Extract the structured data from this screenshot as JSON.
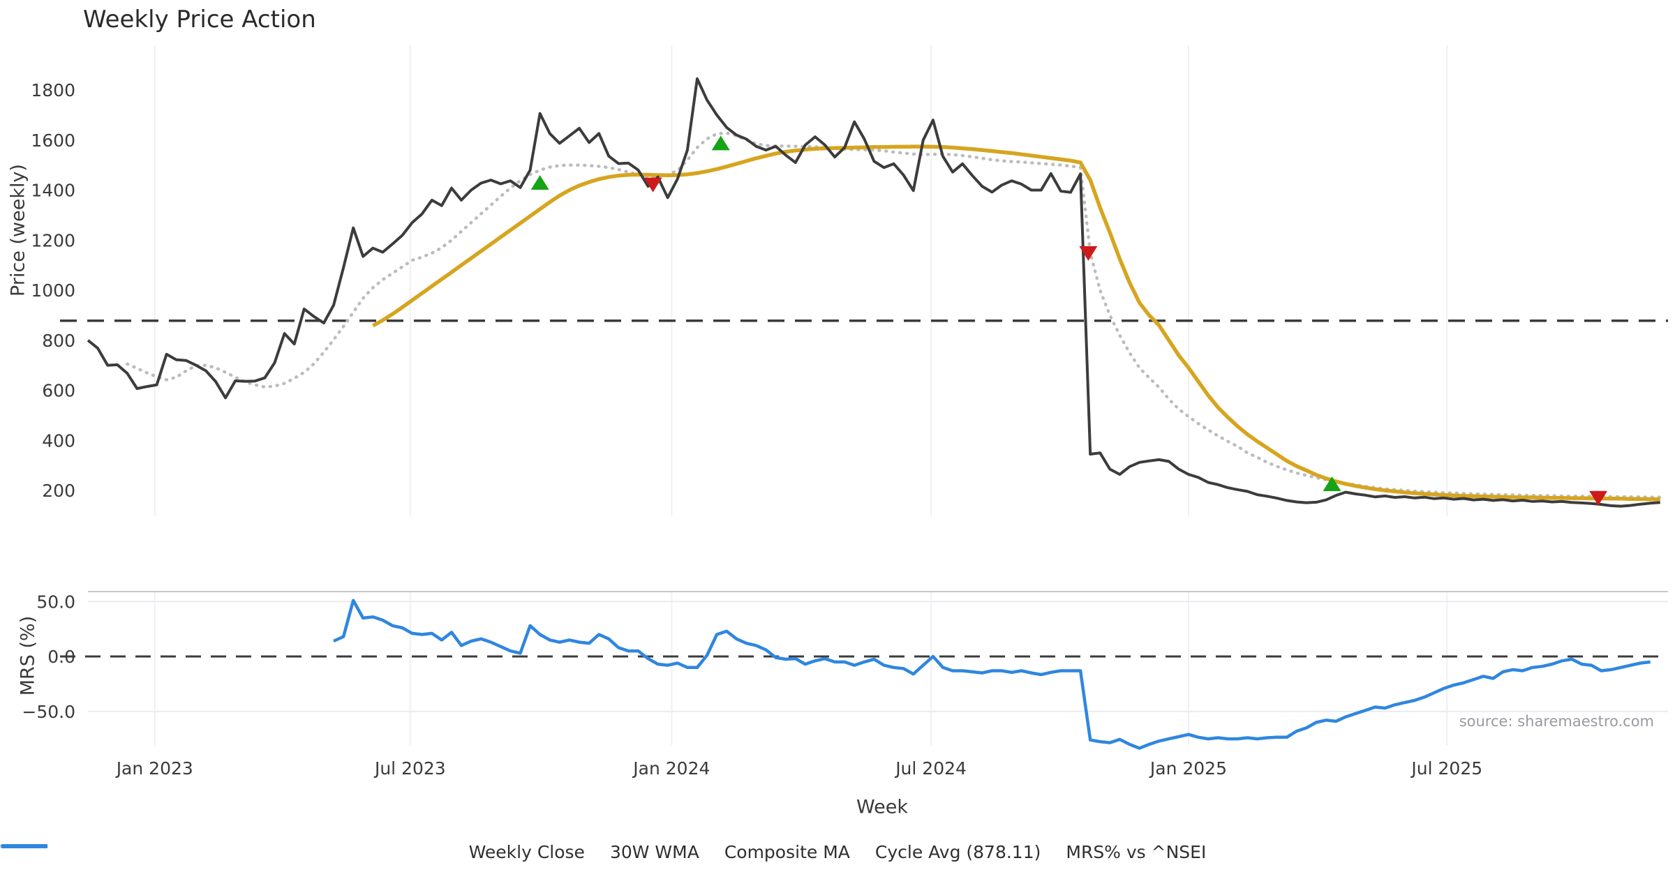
{
  "title": "Weekly Price Action",
  "source": "source: sharemaestro.com",
  "colors": {
    "close": "#3c3c3c",
    "wma": "#d6a520",
    "composite": "#bcbcbc",
    "cycle": "#3b3b3b",
    "mrs": "#2f86e0",
    "buy": "#16a316",
    "sell": "#cd1a1a",
    "grid": "#eef0f5",
    "spine": "#c6c6cc",
    "hgrid": "#e9ebf1",
    "text": "#3a3a3a",
    "source_text": "#9a9aa0"
  },
  "legend": [
    {
      "label": "Weekly Close",
      "style": "solid",
      "color": "#3c3c3c"
    },
    {
      "label": "30W WMA",
      "style": "solid",
      "color": "#d6a520"
    },
    {
      "label": "Composite MA",
      "style": "dotted",
      "color": "#bcbcbc"
    },
    {
      "label": "Cycle Avg (878.11)",
      "style": "dashed",
      "color": "#3b3b3b"
    },
    {
      "label": "MRS% vs ^NSEI",
      "style": "solid",
      "color": "#2f86e0"
    }
  ],
  "chart_data": [
    {
      "type": "line",
      "title": "Weekly Price Action",
      "xlabel": "",
      "ylabel": "Price (weekly)",
      "x_is_weekly": true,
      "week0_date": "2022-11-14",
      "weeks_total": 161,
      "x_ticks": [
        {
          "label": "Jan 2023",
          "week": 6.8
        },
        {
          "label": "Jul 2023",
          "week": 32.8
        },
        {
          "label": "Jan 2024",
          "week": 59.4
        },
        {
          "label": "Jul 2024",
          "week": 85.8
        },
        {
          "label": "Jan 2025",
          "week": 112.0
        },
        {
          "label": "Jul 2025",
          "week": 138.3
        }
      ],
      "y_ticks": [
        200,
        400,
        600,
        800,
        1000,
        1200,
        1400,
        1600,
        1800
      ],
      "ylim": [
        60,
        1900
      ],
      "cycle_avg": 878.11,
      "series": [
        {
          "name": "Weekly Close",
          "start_week": 0,
          "values": [
            800,
            768,
            700,
            702,
            668,
            607,
            615,
            622,
            744,
            722,
            719,
            700,
            678,
            635,
            570,
            638,
            636,
            637,
            650,
            710,
            827,
            785,
            925,
            895,
            869,
            940,
            1090,
            1249,
            1135,
            1168,
            1152,
            1185,
            1220,
            1270,
            1305,
            1360,
            1338,
            1408,
            1360,
            1400,
            1428,
            1440,
            1425,
            1437,
            1410,
            1480,
            1706,
            1626,
            1587,
            1617,
            1647,
            1590,
            1626,
            1536,
            1506,
            1508,
            1480,
            1415,
            1452,
            1370,
            1445,
            1560,
            1845,
            1760,
            1700,
            1650,
            1620,
            1604,
            1575,
            1560,
            1575,
            1540,
            1510,
            1580,
            1613,
            1580,
            1532,
            1570,
            1673,
            1605,
            1515,
            1490,
            1505,
            1460,
            1398,
            1600,
            1680,
            1535,
            1472,
            1505,
            1458,
            1415,
            1392,
            1420,
            1437,
            1424,
            1400,
            1400,
            1466,
            1396,
            1391,
            1465,
            345,
            350,
            285,
            264,
            295,
            312,
            318,
            323,
            316,
            285,
            264,
            252,
            232,
            223,
            211,
            203,
            196,
            183,
            177,
            169,
            160,
            154,
            151,
            153,
            162,
            180,
            193,
            186,
            181,
            174,
            178,
            172,
            175,
            170,
            173,
            167,
            170,
            165,
            168,
            162,
            165,
            160,
            163,
            158,
            161,
            156,
            158,
            154,
            156,
            152,
            150,
            148,
            144,
            139,
            137,
            140,
            145,
            149,
            152
          ]
        },
        {
          "name": "30W WMA",
          "start_week": 29,
          "values": [
            858,
            880,
            905,
            932,
            960,
            988,
            1016,
            1044,
            1072,
            1100,
            1128,
            1156,
            1184,
            1212,
            1240,
            1268,
            1296,
            1324,
            1352,
            1378,
            1400,
            1418,
            1432,
            1444,
            1452,
            1458,
            1461,
            1462,
            1461,
            1460,
            1459,
            1460,
            1463,
            1468,
            1475,
            1484,
            1494,
            1505,
            1516,
            1527,
            1537,
            1546,
            1553,
            1558,
            1562,
            1565,
            1567,
            1568,
            1569,
            1570,
            1571,
            1572,
            1572,
            1573,
            1573,
            1574,
            1574,
            1573,
            1572,
            1570,
            1567,
            1564,
            1560,
            1556,
            1552,
            1548,
            1543,
            1538,
            1533,
            1528,
            1523,
            1518,
            1510,
            1440,
            1330,
            1230,
            1125,
            1030,
            950,
            900,
            860,
            800,
            740,
            690,
            635,
            580,
            532,
            492,
            456,
            424,
            396,
            370,
            344,
            318,
            297,
            280,
            262,
            248,
            236,
            226,
            218,
            211,
            205,
            200,
            196,
            192,
            189,
            186,
            184,
            182,
            180,
            178,
            177,
            176,
            175,
            174,
            173,
            172,
            172,
            171,
            170,
            170,
            169,
            169,
            168,
            168,
            167,
            167,
            166,
            166,
            165,
            165
          ]
        },
        {
          "name": "Composite MA",
          "start_week": 4,
          "values": [
            705,
            688,
            670,
            654,
            642,
            652,
            678,
            698,
            700,
            690,
            672,
            652,
            634,
            622,
            613,
            617,
            628,
            648,
            672,
            706,
            752,
            802,
            855,
            912,
            968,
            1010,
            1042,
            1068,
            1094,
            1120,
            1132,
            1148,
            1170,
            1200,
            1235,
            1270,
            1305,
            1340,
            1375,
            1408,
            1438,
            1462,
            1480,
            1492,
            1498,
            1500,
            1500,
            1498,
            1495,
            1490,
            1482,
            1472,
            1462,
            1455,
            1455,
            1462,
            1478,
            1520,
            1570,
            1605,
            1625,
            1628,
            1618,
            1600,
            1585,
            1578,
            1576,
            1576,
            1575,
            1574,
            1573,
            1570,
            1566,
            1563,
            1562,
            1561,
            1560,
            1557,
            1552,
            1548,
            1544,
            1542,
            1543,
            1544,
            1542,
            1538,
            1533,
            1527,
            1521,
            1517,
            1514,
            1512,
            1509,
            1506,
            1503,
            1500,
            1496,
            1490,
            1150,
            1000,
            900,
            820,
            750,
            690,
            650,
            612,
            565,
            525,
            495,
            467,
            442,
            418,
            396,
            376,
            350,
            332,
            312,
            296,
            282,
            270,
            260,
            251,
            243,
            235,
            228,
            222,
            216,
            211,
            206,
            203,
            200,
            197,
            195,
            193,
            191,
            189,
            188,
            186,
            185,
            184,
            183,
            182,
            181,
            180,
            179,
            179,
            178,
            177,
            177,
            176,
            176,
            175,
            175,
            174,
            174,
            173,
            173
          ]
        }
      ],
      "markers": {
        "buy": [
          [
            46,
            1432
          ],
          [
            64.4,
            1590
          ],
          [
            126.6,
            228
          ]
        ],
        "sell": [
          [
            57.5,
            1422
          ],
          [
            101.8,
            1148
          ],
          [
            153.7,
            170
          ]
        ]
      }
    },
    {
      "type": "line",
      "xlabel": "Week",
      "ylabel": "MRS (%)",
      "y_ticks": [
        {
          "label": "50.0",
          "value": 50
        },
        {
          "label": "0.0",
          "value": 0
        },
        {
          "label": "−50.0",
          "value": -50
        }
      ],
      "zero_line": 0,
      "series": [
        {
          "name": "MRS% vs ^NSEI",
          "start_week": 25,
          "values": [
            14,
            18,
            51,
            35,
            36,
            33,
            28,
            26,
            21,
            20,
            21,
            15,
            22,
            10,
            14,
            16,
            13,
            9,
            5,
            3,
            28,
            20,
            15,
            13,
            15,
            13,
            12,
            20,
            16,
            8,
            5,
            5,
            -2,
            -7,
            -8,
            -6,
            -10,
            -10,
            1,
            20,
            23,
            16,
            12,
            10,
            6,
            -1,
            -2.5,
            -2,
            -7,
            -4,
            -2,
            -5,
            -5,
            -8,
            -5,
            -2.5,
            -8,
            -10,
            -11,
            -16,
            -8,
            0,
            -10,
            -13,
            -13,
            -14,
            -15,
            -13,
            -13,
            -14.5,
            -13,
            -15,
            -16.5,
            -14.5,
            -13,
            -13,
            -13,
            -76,
            -77.5,
            -78.5,
            -75.5,
            -80,
            -83.5,
            -80,
            -77,
            -75,
            -73,
            -71,
            -73.5,
            -75,
            -74,
            -75,
            -75,
            -74,
            -75,
            -74,
            -73.5,
            -73.5,
            -68,
            -65,
            -60,
            -58,
            -59,
            -55,
            -52,
            -49,
            -46,
            -47,
            -44,
            -42,
            -40,
            -37,
            -33,
            -29,
            -26,
            -24,
            -21,
            -18,
            -20,
            -14,
            -12,
            -13,
            -10,
            -9,
            -7,
            -4,
            -2.5,
            -7,
            -8,
            -13,
            -12,
            -10,
            -8,
            -6,
            -5
          ]
        }
      ]
    }
  ]
}
